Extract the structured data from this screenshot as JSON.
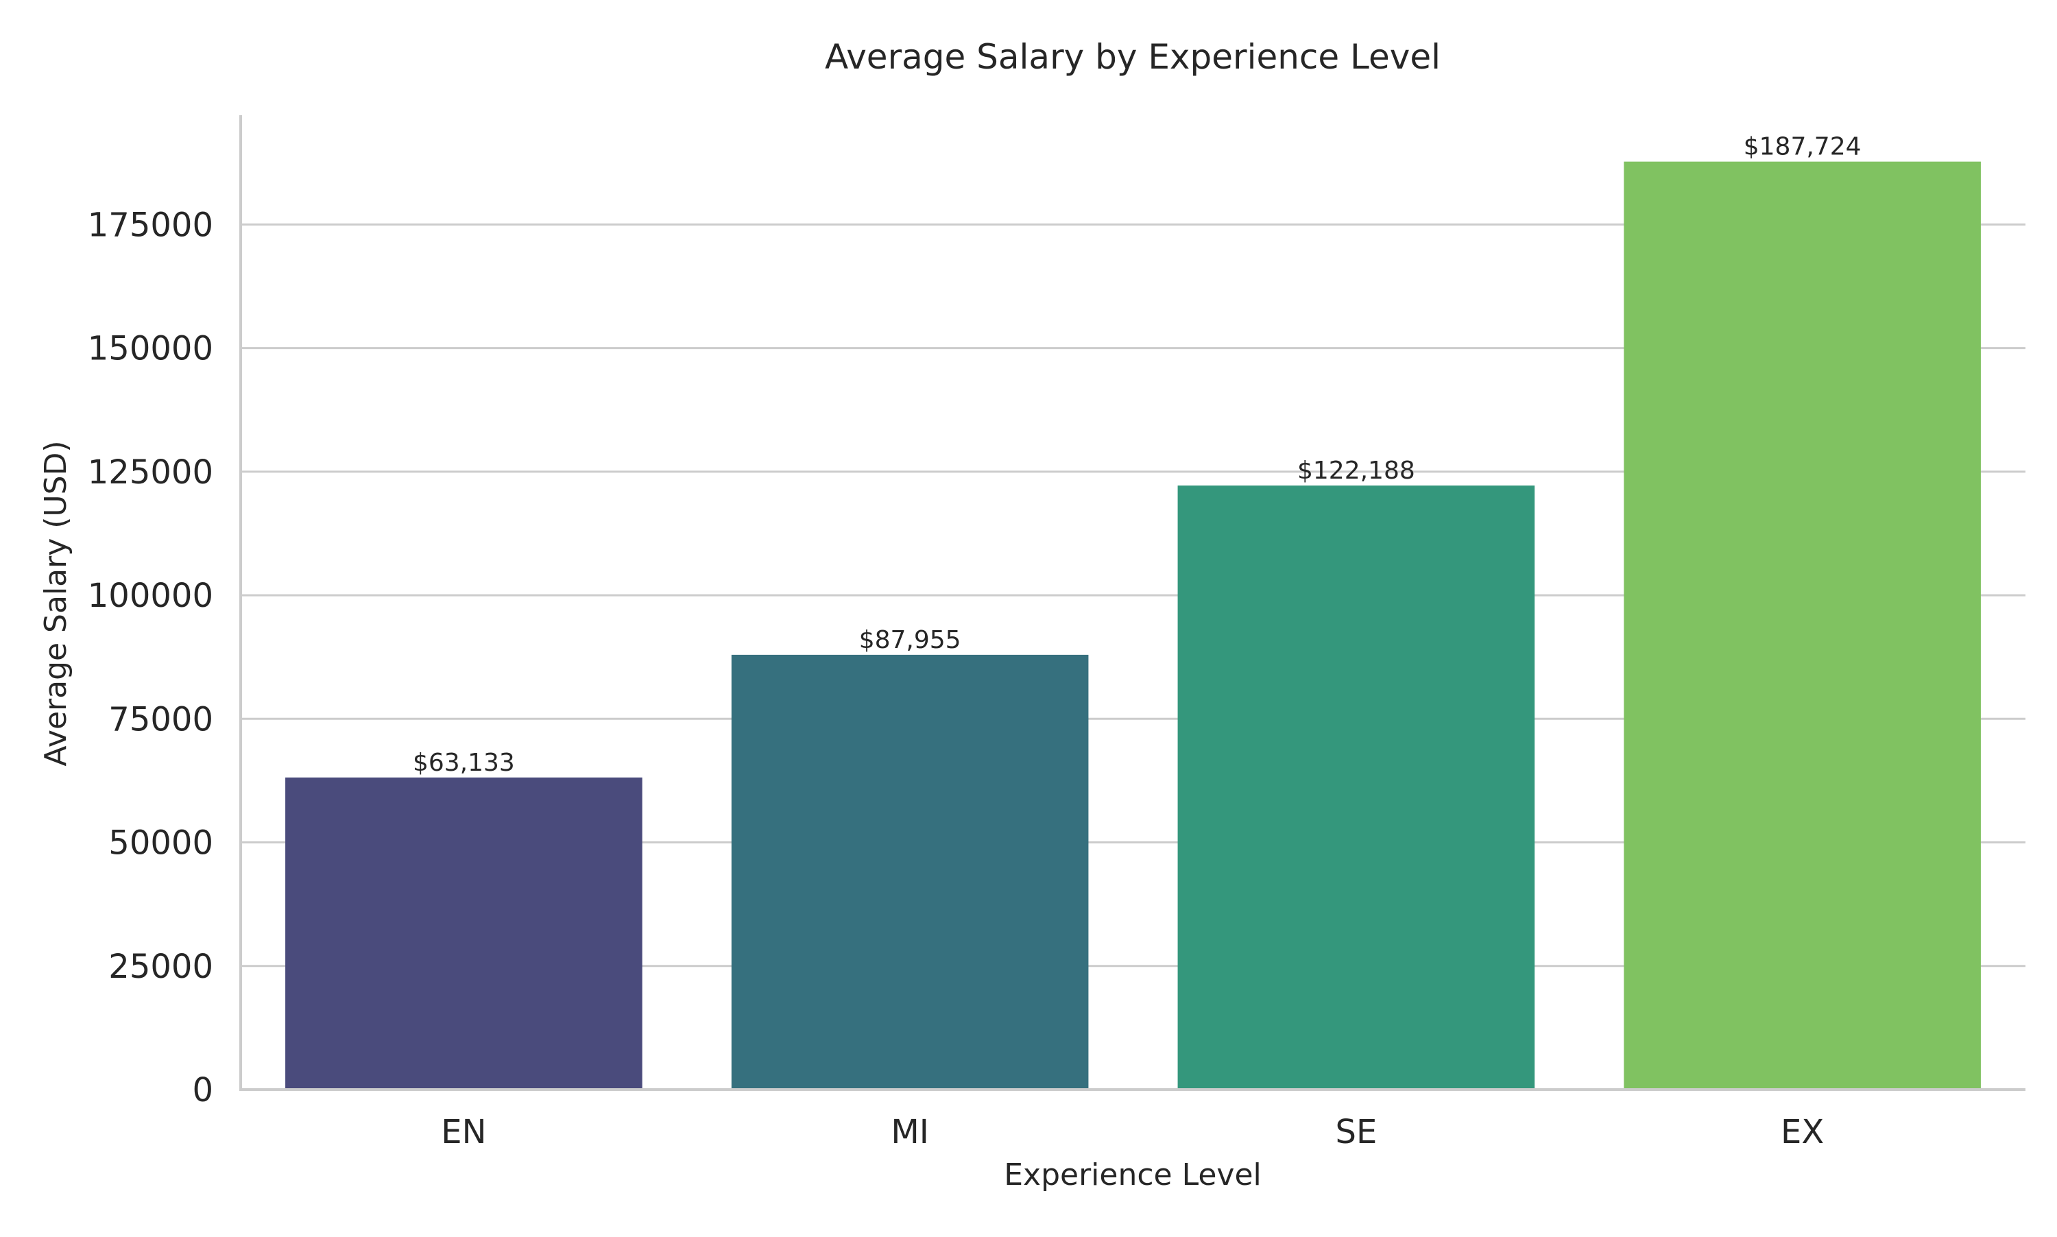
{
  "chart_data": {
    "type": "bar",
    "title": "Average Salary by Experience Level",
    "xlabel": "Experience Level",
    "ylabel": "Average Salary (USD)",
    "categories": [
      "EN",
      "MI",
      "SE",
      "EX"
    ],
    "values": [
      63133,
      87955,
      122188,
      187724
    ],
    "value_labels": [
      "$63,133",
      "$87,955",
      "$122,188",
      "$187,724"
    ],
    "colors": [
      "#4a4b7c",
      "#36707e",
      "#34977c",
      "#80c261"
    ],
    "ylim": [
      0,
      197110
    ],
    "yticks": [
      0,
      25000,
      50000,
      75000,
      100000,
      125000,
      150000,
      175000
    ],
    "ytick_labels": [
      "0",
      "25000",
      "50000",
      "75000",
      "100000",
      "125000",
      "150000",
      "175000"
    ],
    "grid": "horizontal",
    "legend": "none"
  }
}
